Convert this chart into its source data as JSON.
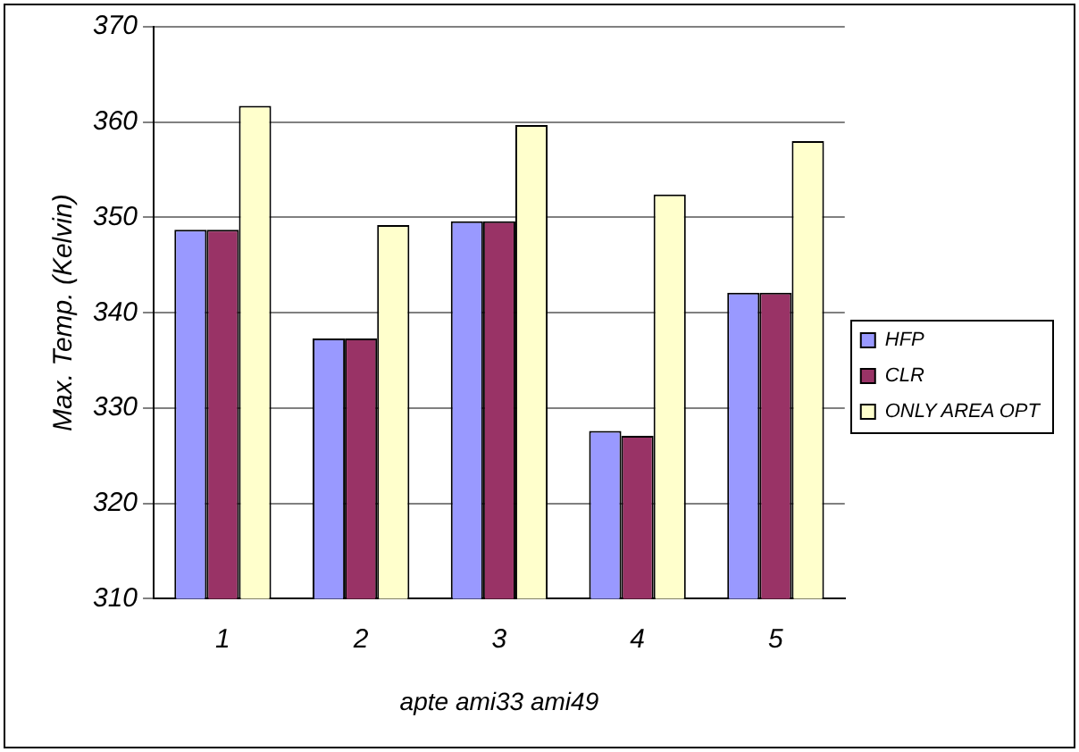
{
  "chart_data": {
    "type": "bar",
    "xlabel": "apte ami33 ami49",
    "ylabel": "Max. Temp. (Kelvin)",
    "categories": [
      "1",
      "2",
      "3",
      "4",
      "5"
    ],
    "series": [
      {
        "name": "HFP",
        "color": "#9999ff",
        "values": [
          348.7,
          337.3,
          349.6,
          327.6,
          342.1
        ]
      },
      {
        "name": "CLR",
        "color": "#993366",
        "values": [
          348.7,
          337.3,
          349.6,
          327.1,
          342.1
        ]
      },
      {
        "name": "ONLY AREA OPT",
        "color": "#ffffcc",
        "values": [
          361.7,
          349.2,
          359.7,
          352.4,
          358
        ]
      }
    ],
    "ylim": [
      310,
      370
    ],
    "yticks": [
      310,
      320,
      330,
      340,
      350,
      360,
      370
    ],
    "grid": "y",
    "legend": "right"
  }
}
